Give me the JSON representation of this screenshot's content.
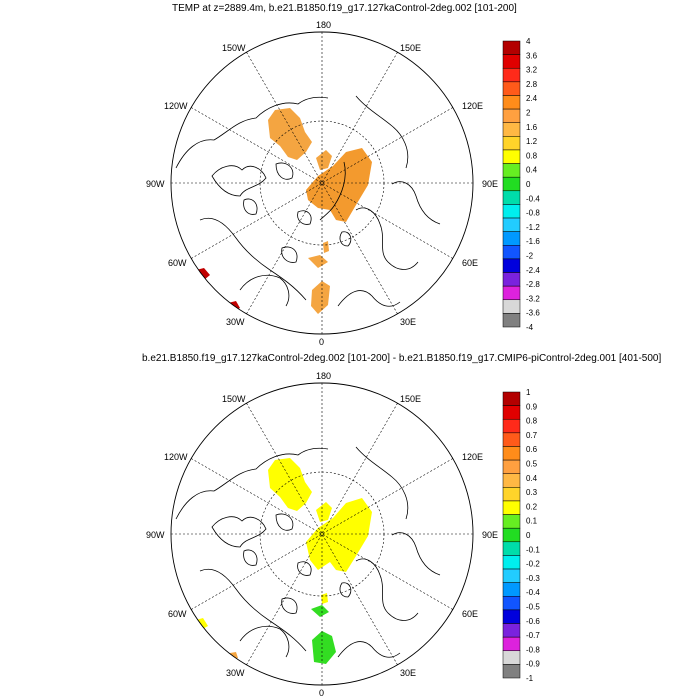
{
  "panels": [
    {
      "title": "TEMP at z=2889.4m, b.e21.B1850.f19_g17.127kaControl-2deg.002 [101-200]",
      "lon_labels": {
        "n180": "180",
        "w150": "150W",
        "e150": "150E",
        "w120": "120W",
        "e120": "120E",
        "w90": "90W",
        "e90": "90E",
        "w60": "60W",
        "e60": "60E",
        "w30": "30W",
        "e30": "30E",
        "s0": "0"
      },
      "colorbar": {
        "labels": [
          "4",
          "3.6",
          "3.2",
          "2.8",
          "2.4",
          "2",
          "1.6",
          "1.2",
          "0.8",
          "0.4",
          "0",
          "-0.4",
          "-0.8",
          "-1.2",
          "-1.6",
          "-2",
          "-2.4",
          "-2.8",
          "-3.2",
          "-3.6",
          "-4"
        ],
        "colors": [
          "#b30000",
          "#e00000",
          "#ff2a1a",
          "#ff5a1a",
          "#ff8c1a",
          "#ffa040",
          "#ffb844",
          "#ffd42a",
          "#ffff00",
          "#66ee22",
          "#22dd22",
          "#00ddaa",
          "#00eeee",
          "#22ccff",
          "#0099ff",
          "#1155ff",
          "#0000dd",
          "#7a22dd",
          "#dd22dd",
          "#d8d8d8",
          "#808080"
        ]
      }
    },
    {
      "title": "b.e21.B1850.f19_g17.127kaControl-2deg.002 [101-200] - b.e21.B1850.f19_g17.CMIP6-piControl-2deg.001 [401-500]",
      "lon_labels": {
        "n180": "180",
        "w150": "150W",
        "e150": "150E",
        "w120": "120W",
        "e120": "120E",
        "w90": "90W",
        "e90": "90E",
        "w60": "60W",
        "e60": "60E",
        "w30": "30W",
        "e30": "30E",
        "s0": "0"
      },
      "colorbar": {
        "labels": [
          "1",
          "0.9",
          "0.8",
          "0.7",
          "0.6",
          "0.5",
          "0.4",
          "0.3",
          "0.2",
          "0.1",
          "0",
          "-0.1",
          "-0.2",
          "-0.3",
          "-0.4",
          "-0.5",
          "-0.6",
          "-0.7",
          "-0.8",
          "-0.9",
          "-1"
        ],
        "colors": [
          "#b30000",
          "#e00000",
          "#ff2a1a",
          "#ff5a1a",
          "#ff8c1a",
          "#ffa040",
          "#ffb844",
          "#ffd42a",
          "#ffff00",
          "#66ee22",
          "#22dd22",
          "#00ddaa",
          "#00eeee",
          "#22ccff",
          "#0099ff",
          "#1155ff",
          "#0000dd",
          "#7a22dd",
          "#dd22dd",
          "#d8d8d8",
          "#808080"
        ]
      }
    }
  ]
}
